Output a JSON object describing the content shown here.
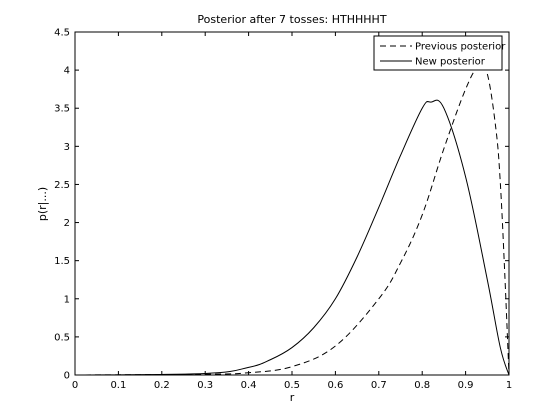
{
  "chart_data": {
    "type": "line",
    "title": "Posterior after 7 tosses: HTHHHHT",
    "xlabel": "r",
    "ylabel": "p(r|...)",
    "xlim": [
      0,
      1
    ],
    "ylim": [
      0,
      4.5
    ],
    "xticks": [
      0,
      0.1,
      0.2,
      0.3,
      0.4,
      0.5,
      0.6,
      0.7,
      0.8,
      0.9,
      1
    ],
    "yticks": [
      0,
      0.5,
      1,
      1.5,
      2,
      2.5,
      3,
      3.5,
      4,
      4.5
    ],
    "xtick_labels": [
      "0",
      "0.1",
      "0.2",
      "0.3",
      "0.4",
      "0.5",
      "0.6",
      "0.7",
      "0.8",
      "0.9",
      "1"
    ],
    "ytick_labels": [
      "0",
      "0.5",
      "1",
      "1.5",
      "2",
      "2.5",
      "3",
      "3.5",
      "4",
      "4.5"
    ],
    "grid": false,
    "legend": {
      "placement": "top-right"
    },
    "series": [
      {
        "name": "Previous posterior",
        "style": "dashed",
        "x": [
          0,
          0.3,
          0.4,
          0.5,
          0.6,
          0.7,
          0.75,
          0.8,
          0.85,
          0.9,
          0.93,
          0.95,
          0.97,
          0.98,
          0.99,
          1
        ],
        "y": [
          0,
          0.01,
          0.03,
          0.11,
          0.38,
          1.0,
          1.47,
          2.1,
          2.97,
          3.75,
          4.05,
          3.95,
          3.22,
          2.52,
          1.36,
          0
        ]
      },
      {
        "name": "New posterior",
        "style": "solid",
        "x": [
          0,
          0.3,
          0.4,
          0.45,
          0.5,
          0.55,
          0.6,
          0.65,
          0.7,
          0.75,
          0.8,
          0.82,
          0.85,
          0.9,
          0.95,
          0.98,
          1
        ],
        "y": [
          0,
          0.02,
          0.1,
          0.2,
          0.36,
          0.62,
          1.0,
          1.55,
          2.2,
          2.88,
          3.5,
          3.58,
          3.5,
          2.6,
          1.25,
          0.36,
          0
        ]
      }
    ]
  }
}
